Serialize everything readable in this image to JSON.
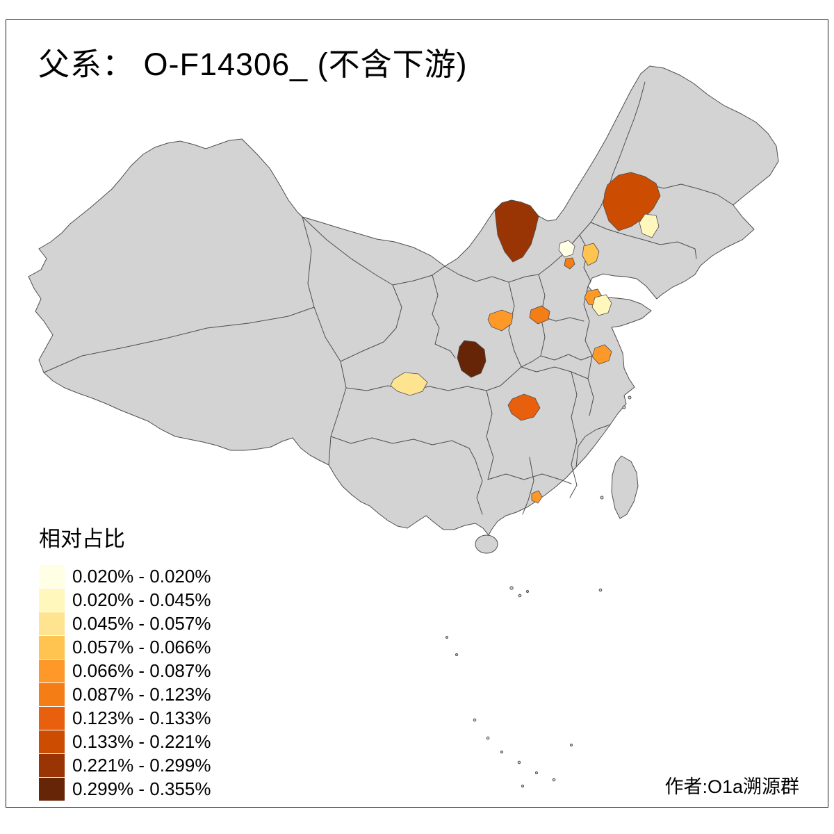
{
  "title": "父系： O-F14306_ (不含下游)",
  "author": "作者:O1a溯源群",
  "legend": {
    "title": "相对占比",
    "items": [
      {
        "label": "0.020% - 0.020%",
        "color": "#FFFFE5"
      },
      {
        "label": "0.020% - 0.045%",
        "color": "#FFF7BC"
      },
      {
        "label": "0.045% - 0.057%",
        "color": "#FEE391"
      },
      {
        "label": "0.057% - 0.066%",
        "color": "#FEC44F"
      },
      {
        "label": "0.066% - 0.087%",
        "color": "#FE9929"
      },
      {
        "label": "0.087% - 0.123%",
        "color": "#F57D15"
      },
      {
        "label": "0.123% - 0.133%",
        "color": "#E8600D"
      },
      {
        "label": "0.133% - 0.221%",
        "color": "#CC4C02"
      },
      {
        "label": "0.221% - 0.299%",
        "color": "#993404"
      },
      {
        "label": "0.299% - 0.355%",
        "color": "#662506"
      }
    ]
  },
  "map": {
    "base_fill": "#D3D3D3",
    "border_stroke": "#4D4D4D",
    "background": "#FFFFFF",
    "highlighted_regions": [
      {
        "name": "inner-mongolia-central",
        "bin": "0.221% - 0.299%",
        "color": "#993404"
      },
      {
        "name": "jilin-west",
        "bin": "0.133% - 0.221%",
        "color": "#CC4C02"
      },
      {
        "name": "jilin-south-pale",
        "bin": "0.020% - 0.045%",
        "color": "#FFF7BC"
      },
      {
        "name": "beijing",
        "bin": "0.020% - 0.020%",
        "color": "#FFFFE5"
      },
      {
        "name": "beijing-south-dot",
        "bin": "0.087% - 0.123%",
        "color": "#F57D15"
      },
      {
        "name": "tianjin-tangshan",
        "bin": "0.057% - 0.066%",
        "color": "#FEC44F"
      },
      {
        "name": "shandong-northwest",
        "bin": "0.066% - 0.087%",
        "color": "#FE9929"
      },
      {
        "name": "shandong-north-pale",
        "bin": "0.020% - 0.045%",
        "color": "#FFF7BC"
      },
      {
        "name": "shanxi-southeast",
        "bin": "0.066% - 0.087%",
        "color": "#FE9929"
      },
      {
        "name": "henan-north",
        "bin": "0.087% - 0.123%",
        "color": "#F57D15"
      },
      {
        "name": "shaanxi-central",
        "bin": "0.299% - 0.355%",
        "color": "#662506"
      },
      {
        "name": "sichuan-chengdu",
        "bin": "0.045% - 0.057%",
        "color": "#FEE391"
      },
      {
        "name": "hubei-south",
        "bin": "0.123% - 0.133%",
        "color": "#E8600D"
      },
      {
        "name": "anhui-north",
        "bin": "0.066% - 0.087%",
        "color": "#FE9929"
      },
      {
        "name": "guangdong-central",
        "bin": "0.066% - 0.087%",
        "color": "#FE9929"
      }
    ]
  },
  "chart_data": {
    "type": "choropleth",
    "title": "父系： O-F14306_ (不含下游)",
    "legend_title": "相对占比",
    "unit": "%",
    "value_range": [
      0.02,
      0.355
    ],
    "bins": [
      "0.020% - 0.020%",
      "0.020% - 0.045%",
      "0.045% - 0.057%",
      "0.057% - 0.066%",
      "0.066% - 0.087%",
      "0.087% - 0.123%",
      "0.123% - 0.133%",
      "0.133% - 0.221%",
      "0.221% - 0.299%",
      "0.299% - 0.355%"
    ],
    "palette": [
      "#FFFFE5",
      "#FFF7BC",
      "#FEE391",
      "#FEC44F",
      "#FE9929",
      "#F57D15",
      "#E8600D",
      "#CC4C02",
      "#993404",
      "#662506"
    ],
    "regions_highlighted": 15
  }
}
